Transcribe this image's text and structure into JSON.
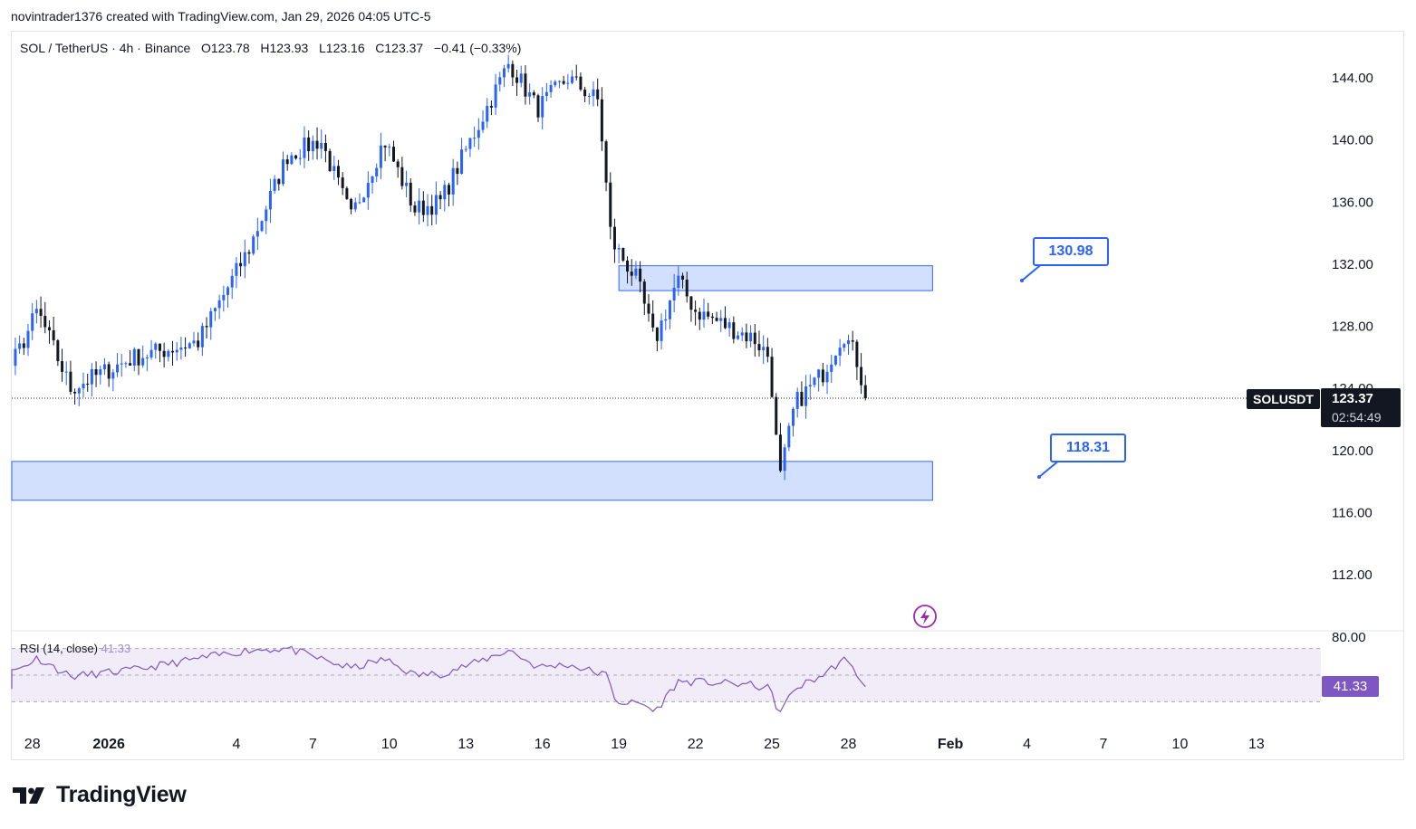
{
  "header": {
    "text": "novintrader1376 created with TradingView.com, Jan 29, 2026 04:05 UTC-5"
  },
  "legend": {
    "symbol": "SOL / TetherUS · 4h · Binance",
    "open": "O123.78",
    "high": "H123.93",
    "low": "L123.16",
    "close": "C123.37",
    "change": "−0.41 (−0.33%)"
  },
  "rsi_legend": {
    "label": "RSI (14, close)",
    "value": "41.33"
  },
  "price_tag": {
    "ticker": "SOLUSDT",
    "price": "123.37",
    "countdown": "02:54:49"
  },
  "rsi_tag": "41.33",
  "callouts": {
    "upper": "130.98",
    "lower": "118.31"
  },
  "brand": {
    "name": "TradingView"
  },
  "colors": {
    "up": "#2962ff",
    "down": "#131722",
    "zone_fill": "#d1dffd",
    "zone_border": "#2962ff",
    "rsi_line": "#7e57c2",
    "rsi_band": "#ede7f6"
  },
  "icons": [
    "lightning-icon",
    "tradingview-logo-icon"
  ],
  "chart_data": [
    {
      "type": "candlestick",
      "symbol": "SOLUSDT",
      "interval": "4h",
      "y_ticks": [
        144,
        140,
        136,
        132,
        128,
        124,
        120,
        116,
        112
      ],
      "y_tick_labels": [
        "144.00",
        "140.00",
        "136.00",
        "132.00",
        "128.00",
        "124.00",
        "120.00",
        "116.00",
        "112.00"
      ],
      "ylim": [
        108.5,
        146.7
      ],
      "x_tick_labels": [
        "25",
        "28",
        "2026",
        "4",
        "7",
        "10",
        "13",
        "16",
        "19",
        "22",
        "25",
        "28",
        "Feb",
        "4",
        "7",
        "10",
        "13"
      ],
      "x_tick_days": [
        -7,
        -4,
        -1,
        4,
        7,
        10,
        13,
        16,
        19,
        22,
        25,
        28,
        32,
        35,
        38,
        41,
        44
      ],
      "x_note": "days relative to Jan 0 2026 (Dec 31 = 0); 6 candles per day",
      "current_price": 123.37,
      "zones": [
        {
          "top": 131.9,
          "bottom": 130.3,
          "start_day": 19,
          "end_day": 31.3,
          "label": "130.98"
        },
        {
          "top": 119.3,
          "bottom": 116.8,
          "start_day": -8,
          "end_day": 31.3,
          "label": "118.31"
        }
      ],
      "key_points": [
        {
          "day": -8,
          "price": 124.0
        },
        {
          "day": -6.5,
          "price": 120.5
        },
        {
          "day": -4.5,
          "price": 126.5
        },
        {
          "day": -3.8,
          "price": 129
        },
        {
          "day": -2.5,
          "price": 124
        },
        {
          "day": 0,
          "price": 126
        },
        {
          "day": 2.5,
          "price": 127
        },
        {
          "day": 4.5,
          "price": 133
        },
        {
          "day": 6,
          "price": 139
        },
        {
          "day": 7.3,
          "price": 140
        },
        {
          "day": 8.5,
          "price": 135
        },
        {
          "day": 9.8,
          "price": 140
        },
        {
          "day": 11,
          "price": 135.5
        },
        {
          "day": 12,
          "price": 136
        },
        {
          "day": 13.5,
          "price": 141
        },
        {
          "day": 14.7,
          "price": 145
        },
        {
          "day": 15.8,
          "price": 142
        },
        {
          "day": 17,
          "price": 144
        },
        {
          "day": 18.2,
          "price": 142.5
        },
        {
          "day": 18.7,
          "price": 133.5
        },
        {
          "day": 19.7,
          "price": 131
        },
        {
          "day": 20.4,
          "price": 127
        },
        {
          "day": 21.3,
          "price": 131
        },
        {
          "day": 22,
          "price": 129
        },
        {
          "day": 23.5,
          "price": 127.8
        },
        {
          "day": 24.3,
          "price": 127.2
        },
        {
          "day": 24.9,
          "price": 126
        },
        {
          "day": 25.3,
          "price": 118
        },
        {
          "day": 25.9,
          "price": 123
        },
        {
          "day": 27,
          "price": 125
        },
        {
          "day": 27.8,
          "price": 127.6
        },
        {
          "day": 28.3,
          "price": 126
        },
        {
          "day": 28.7,
          "price": 123.37
        }
      ]
    },
    {
      "type": "line",
      "name": "RSI (14, close)",
      "y_ticks": [
        80
      ],
      "y_tick_labels": [
        "80.00"
      ],
      "bands": [
        70,
        50,
        30
      ],
      "last_value": 41.33,
      "key_points": [
        {
          "day": -8,
          "value": 46
        },
        {
          "day": -6.5,
          "value": 41
        },
        {
          "day": -4.5,
          "value": 55
        },
        {
          "day": -3.8,
          "value": 63
        },
        {
          "day": -2.5,
          "value": 49
        },
        {
          "day": 0,
          "value": 54
        },
        {
          "day": 4.5,
          "value": 69
        },
        {
          "day": 6,
          "value": 70
        },
        {
          "day": 8.5,
          "value": 55
        },
        {
          "day": 9.8,
          "value": 62
        },
        {
          "day": 11,
          "value": 50
        },
        {
          "day": 12,
          "value": 51
        },
        {
          "day": 13.5,
          "value": 60
        },
        {
          "day": 14.7,
          "value": 69
        },
        {
          "day": 15.8,
          "value": 56
        },
        {
          "day": 17,
          "value": 58
        },
        {
          "day": 18.5,
          "value": 50
        },
        {
          "day": 18.9,
          "value": 30
        },
        {
          "day": 20,
          "value": 28
        },
        {
          "day": 20.4,
          "value": 22
        },
        {
          "day": 21.3,
          "value": 45
        },
        {
          "day": 22,
          "value": 45
        },
        {
          "day": 24,
          "value": 43
        },
        {
          "day": 24.9,
          "value": 40
        },
        {
          "day": 25.3,
          "value": 21
        },
        {
          "day": 25.9,
          "value": 40
        },
        {
          "day": 27,
          "value": 50
        },
        {
          "day": 27.8,
          "value": 62
        },
        {
          "day": 28.3,
          "value": 52
        },
        {
          "day": 28.7,
          "value": 41.33
        }
      ]
    }
  ]
}
